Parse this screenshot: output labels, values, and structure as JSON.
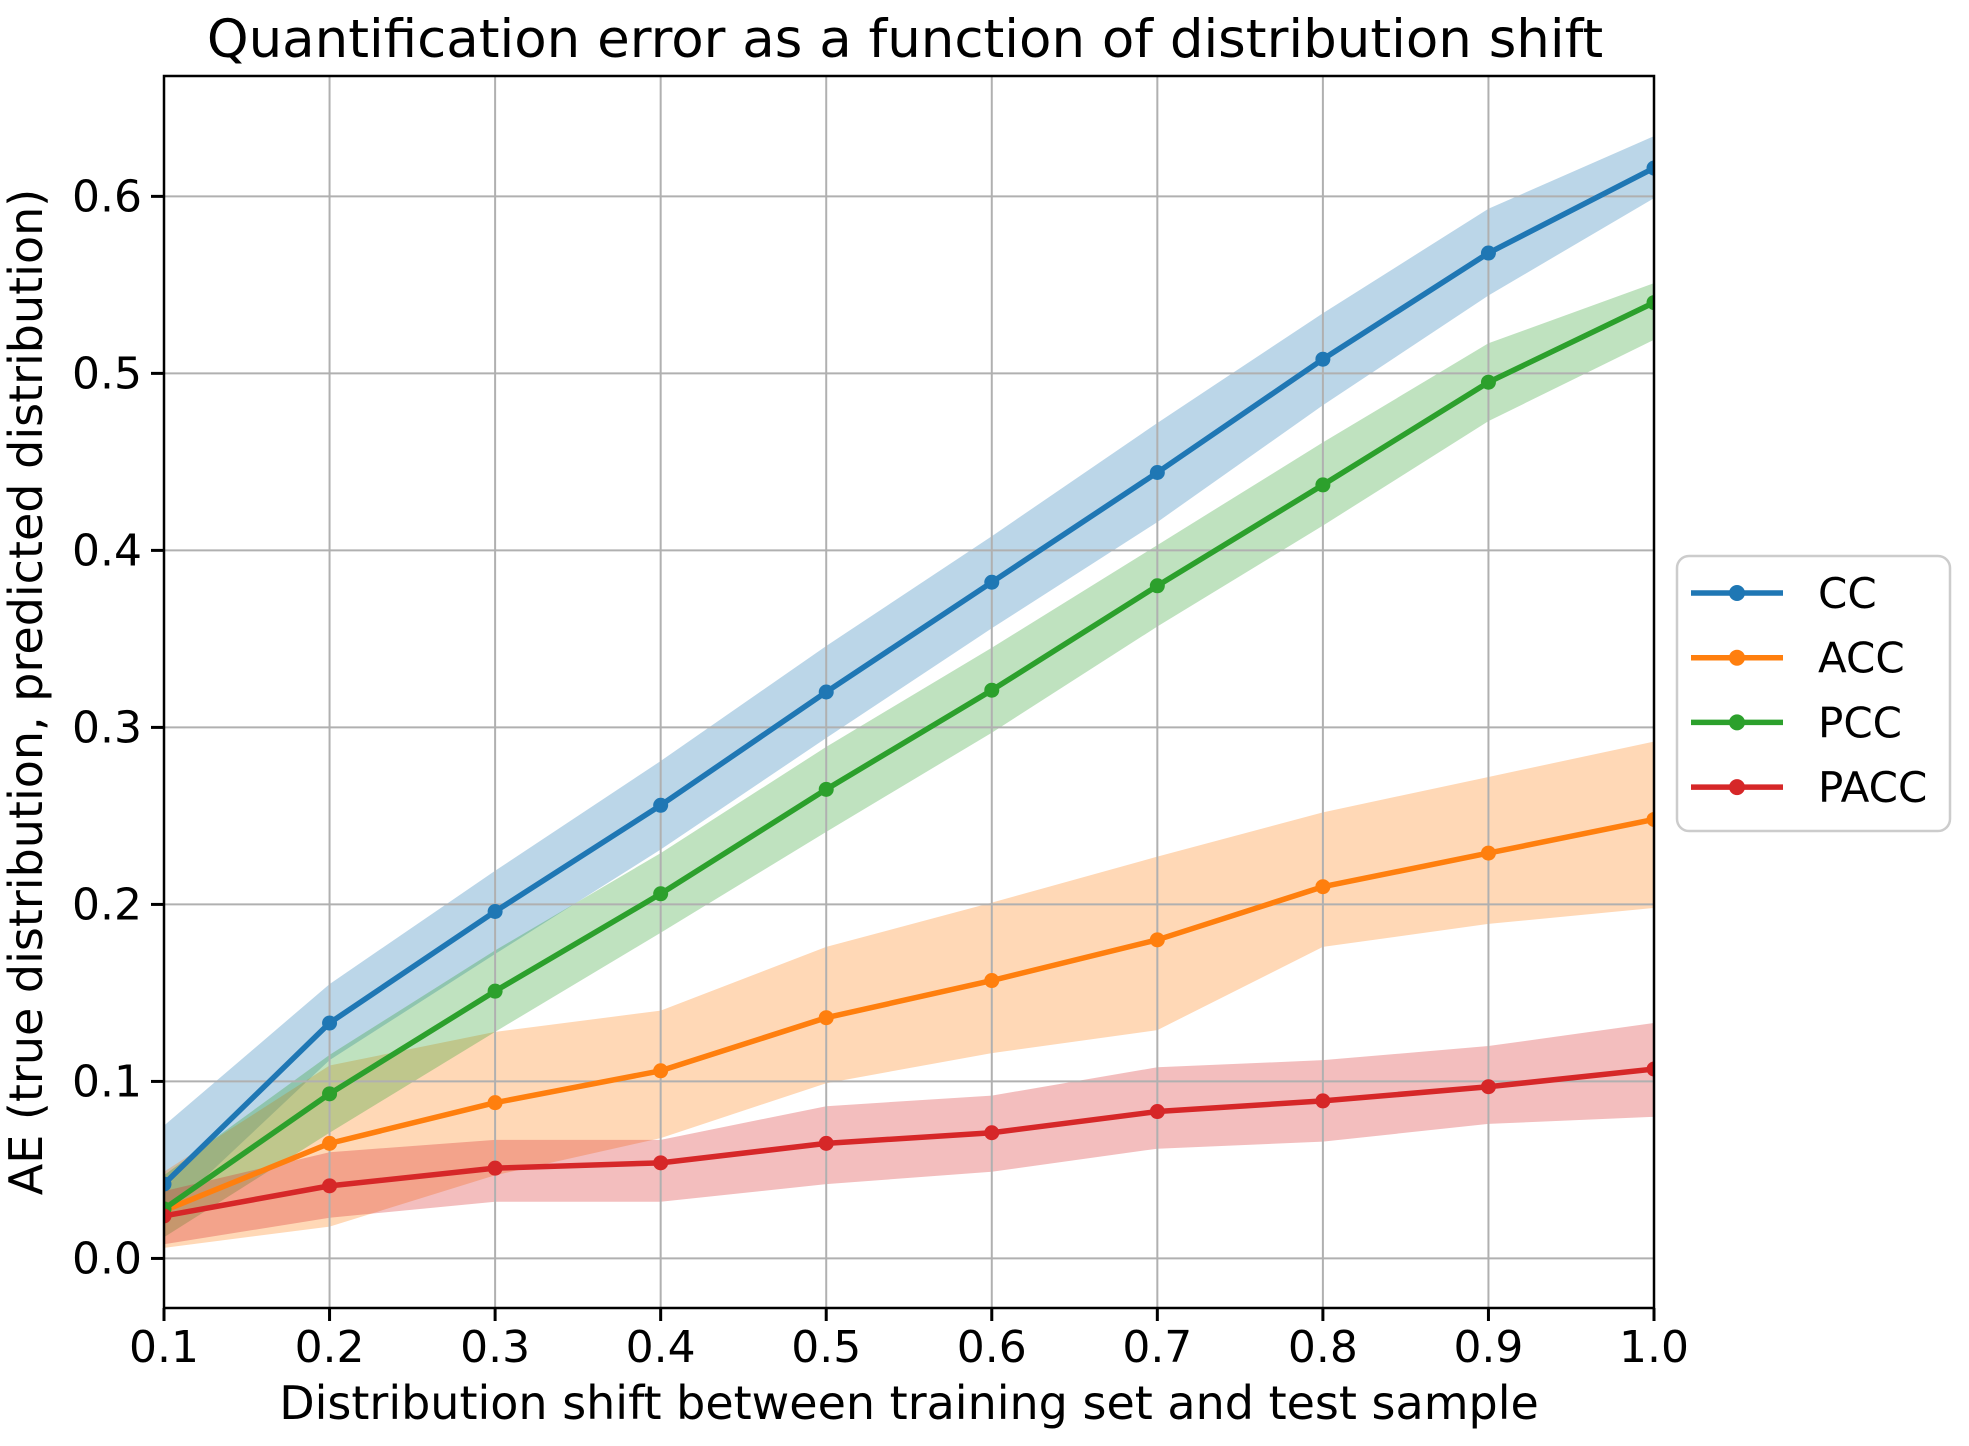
{
  "chart_data": {
    "type": "line",
    "title": "Quantification error as a function of distribution shift",
    "xlabel": "Distribution shift between training set and test sample",
    "ylabel": "AE (true distribution, predicted distribution)",
    "x": [
      0.1,
      0.2,
      0.3,
      0.4,
      0.5,
      0.6,
      0.7,
      0.8,
      0.9,
      1.0
    ],
    "xlim": [
      0.1,
      1.0
    ],
    "ylim": [
      -0.028,
      0.668
    ],
    "xticks": {
      "values": [
        0.1,
        0.2,
        0.3,
        0.4,
        0.5,
        0.6,
        0.7,
        0.8,
        0.9,
        1.0
      ],
      "labels": [
        "0.1",
        "0.2",
        "0.3",
        "0.4",
        "0.5",
        "0.6",
        "0.7",
        "0.8",
        "0.9",
        "1.0"
      ]
    },
    "yticks": {
      "values": [
        0.0,
        0.1,
        0.2,
        0.3,
        0.4,
        0.5,
        0.6
      ],
      "labels": [
        "0.0",
        "0.1",
        "0.2",
        "0.3",
        "0.4",
        "0.5",
        "0.6"
      ]
    },
    "grid": true,
    "grid_color": "#b0b0b0",
    "spine_color": "#000000",
    "band_opacity": 0.3,
    "legend_position": "center-right-outside",
    "legend_border_color": "#cccccc",
    "series": [
      {
        "name": "CC",
        "color": "#1f77b4",
        "values": [
          0.042,
          0.133,
          0.196,
          0.256,
          0.32,
          0.382,
          0.444,
          0.508,
          0.568,
          0.616
        ],
        "lower": [
          0.024,
          0.112,
          0.172,
          0.231,
          0.294,
          0.356,
          0.416,
          0.482,
          0.544,
          0.599
        ],
        "upper": [
          0.075,
          0.155,
          0.219,
          0.281,
          0.346,
          0.408,
          0.472,
          0.534,
          0.593,
          0.634
        ]
      },
      {
        "name": "ACC",
        "color": "#ff7f0e",
        "values": [
          0.027,
          0.065,
          0.088,
          0.106,
          0.136,
          0.157,
          0.18,
          0.21,
          0.229,
          0.248
        ],
        "lower": [
          0.006,
          0.018,
          0.047,
          0.068,
          0.099,
          0.116,
          0.129,
          0.176,
          0.189,
          0.198
        ],
        "upper": [
          0.049,
          0.109,
          0.128,
          0.14,
          0.176,
          0.201,
          0.227,
          0.252,
          0.272,
          0.292
        ]
      },
      {
        "name": "PCC",
        "color": "#2ca02c",
        "values": [
          0.028,
          0.093,
          0.151,
          0.206,
          0.265,
          0.321,
          0.38,
          0.437,
          0.495,
          0.54
        ],
        "lower": [
          0.012,
          0.071,
          0.128,
          0.184,
          0.241,
          0.297,
          0.357,
          0.414,
          0.473,
          0.519
        ],
        "upper": [
          0.047,
          0.115,
          0.174,
          0.229,
          0.289,
          0.345,
          0.403,
          0.461,
          0.517,
          0.551
        ]
      },
      {
        "name": "PACC",
        "color": "#d62728",
        "values": [
          0.024,
          0.041,
          0.051,
          0.054,
          0.065,
          0.071,
          0.083,
          0.089,
          0.097,
          0.107
        ],
        "lower": [
          0.008,
          0.023,
          0.032,
          0.032,
          0.042,
          0.049,
          0.062,
          0.066,
          0.076,
          0.08
        ],
        "upper": [
          0.038,
          0.06,
          0.067,
          0.067,
          0.086,
          0.092,
          0.108,
          0.112,
          0.12,
          0.133
        ]
      }
    ]
  }
}
